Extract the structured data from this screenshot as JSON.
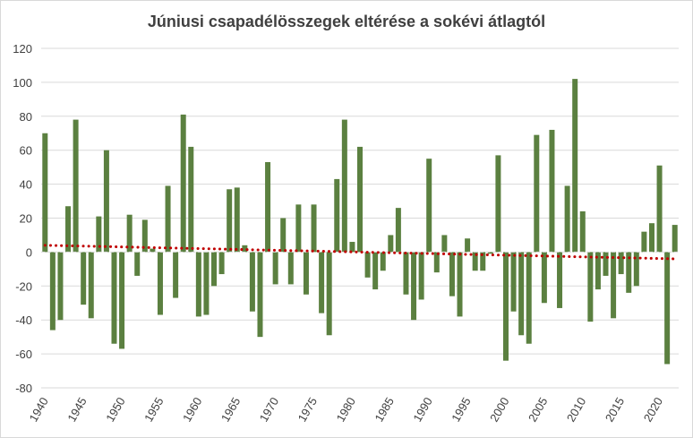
{
  "chart_data": {
    "type": "bar",
    "title": "Júniusi csapadélösszegek eltérése a sokévi átlagtól",
    "xlabel": "",
    "ylabel": "",
    "ylim": [
      -80,
      120
    ],
    "yticks": [
      -80,
      -60,
      -40,
      -20,
      0,
      20,
      40,
      60,
      80,
      100,
      120
    ],
    "xtick_labels": [
      "1940",
      "1945",
      "1950",
      "1955",
      "1960",
      "1965",
      "1970",
      "1975",
      "1980",
      "1985",
      "1990",
      "1995",
      "2000",
      "2005",
      "2010",
      "2015",
      "2020"
    ],
    "grid": true,
    "bar_color": "#5b8040",
    "trend_color": "#c00000",
    "x": [
      1940,
      1941,
      1942,
      1943,
      1944,
      1945,
      1946,
      1947,
      1948,
      1949,
      1950,
      1951,
      1952,
      1953,
      1954,
      1955,
      1956,
      1957,
      1958,
      1959,
      1960,
      1961,
      1962,
      1963,
      1964,
      1965,
      1966,
      1967,
      1968,
      1969,
      1970,
      1971,
      1972,
      1973,
      1974,
      1975,
      1976,
      1977,
      1978,
      1979,
      1980,
      1981,
      1982,
      1983,
      1984,
      1985,
      1986,
      1987,
      1988,
      1989,
      1990,
      1991,
      1992,
      1993,
      1994,
      1995,
      1996,
      1997,
      1998,
      1999,
      2000,
      2001,
      2002,
      2003,
      2004,
      2005,
      2006,
      2007,
      2008,
      2009,
      2010,
      2011,
      2012,
      2013,
      2014,
      2015,
      2016,
      2017,
      2018,
      2019,
      2020,
      2021,
      2022
    ],
    "values": [
      70,
      -46,
      -40,
      27,
      78,
      -31,
      -39,
      21,
      60,
      -54,
      -57,
      22,
      -14,
      19,
      2,
      -37,
      39,
      -27,
      81,
      62,
      -38,
      -37,
      -20,
      -13,
      37,
      38,
      4,
      -35,
      -50,
      53,
      -19,
      20,
      -19,
      28,
      -25,
      28,
      -36,
      -49,
      43,
      78,
      6,
      62,
      -15,
      -22,
      -11,
      10,
      26,
      -25,
      -40,
      -28,
      55,
      -12,
      10,
      -26,
      -38,
      8,
      -11,
      -11,
      -1,
      57,
      -64,
      -35,
      -49,
      -54,
      69,
      -30,
      72,
      -33,
      39,
      102,
      24,
      -41,
      -22,
      -14,
      -39,
      -13,
      -24,
      -20,
      12,
      17,
      51,
      -66,
      16
    ],
    "trend": {
      "type": "linear",
      "start": 4,
      "end": -4
    }
  }
}
